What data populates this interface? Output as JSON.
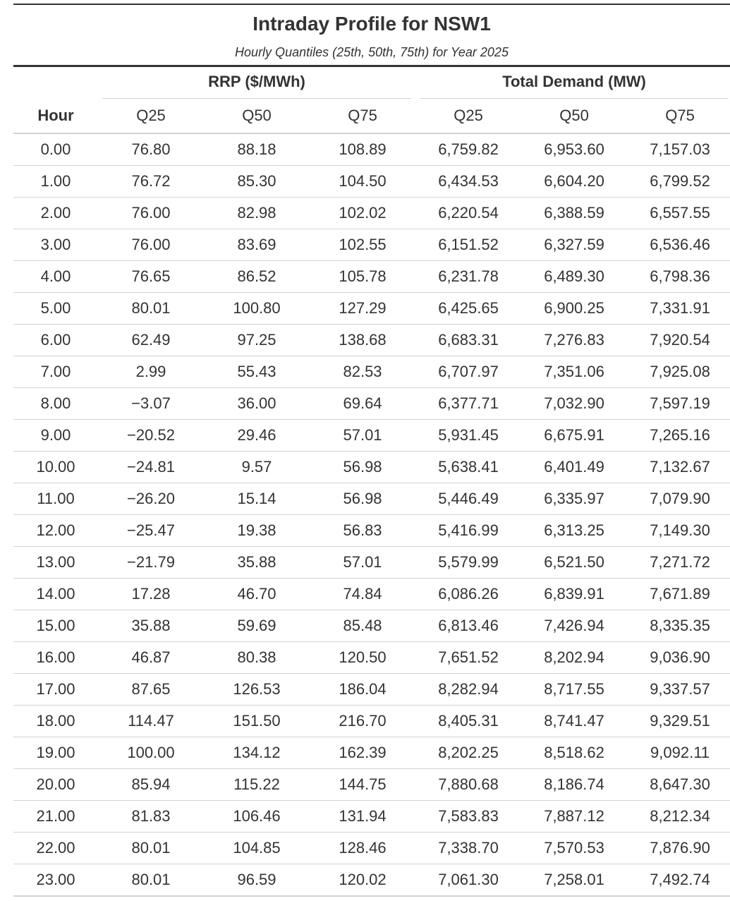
{
  "chart_data": {
    "type": "table",
    "title": "Intraday Profile for NSW1",
    "subtitle": "Hourly Quantiles (25th, 50th, 75th) for Year 2025",
    "spanners": [
      "RRP ($/MWh)",
      "Total Demand (MW)"
    ],
    "stub_header": "Hour",
    "columns": [
      "Q25",
      "Q50",
      "Q75",
      "Q25",
      "Q50",
      "Q75"
    ],
    "rows": [
      {
        "hour": "0.00",
        "cells": [
          "76.80",
          "88.18",
          "108.89",
          "6,759.82",
          "6,953.60",
          "7,157.03"
        ]
      },
      {
        "hour": "1.00",
        "cells": [
          "76.72",
          "85.30",
          "104.50",
          "6,434.53",
          "6,604.20",
          "6,799.52"
        ]
      },
      {
        "hour": "2.00",
        "cells": [
          "76.00",
          "82.98",
          "102.02",
          "6,220.54",
          "6,388.59",
          "6,557.55"
        ]
      },
      {
        "hour": "3.00",
        "cells": [
          "76.00",
          "83.69",
          "102.55",
          "6,151.52",
          "6,327.59",
          "6,536.46"
        ]
      },
      {
        "hour": "4.00",
        "cells": [
          "76.65",
          "86.52",
          "105.78",
          "6,231.78",
          "6,489.30",
          "6,798.36"
        ]
      },
      {
        "hour": "5.00",
        "cells": [
          "80.01",
          "100.80",
          "127.29",
          "6,425.65",
          "6,900.25",
          "7,331.91"
        ]
      },
      {
        "hour": "6.00",
        "cells": [
          "62.49",
          "97.25",
          "138.68",
          "6,683.31",
          "7,276.83",
          "7,920.54"
        ]
      },
      {
        "hour": "7.00",
        "cells": [
          "2.99",
          "55.43",
          "82.53",
          "6,707.97",
          "7,351.06",
          "7,925.08"
        ]
      },
      {
        "hour": "8.00",
        "cells": [
          "−3.07",
          "36.00",
          "69.64",
          "6,377.71",
          "7,032.90",
          "7,597.19"
        ]
      },
      {
        "hour": "9.00",
        "cells": [
          "−20.52",
          "29.46",
          "57.01",
          "5,931.45",
          "6,675.91",
          "7,265.16"
        ]
      },
      {
        "hour": "10.00",
        "cells": [
          "−24.81",
          "9.57",
          "56.98",
          "5,638.41",
          "6,401.49",
          "7,132.67"
        ]
      },
      {
        "hour": "11.00",
        "cells": [
          "−26.20",
          "15.14",
          "56.98",
          "5,446.49",
          "6,335.97",
          "7,079.90"
        ]
      },
      {
        "hour": "12.00",
        "cells": [
          "−25.47",
          "19.38",
          "56.83",
          "5,416.99",
          "6,313.25",
          "7,149.30"
        ]
      },
      {
        "hour": "13.00",
        "cells": [
          "−21.79",
          "35.88",
          "57.01",
          "5,579.99",
          "6,521.50",
          "7,271.72"
        ]
      },
      {
        "hour": "14.00",
        "cells": [
          "17.28",
          "46.70",
          "74.84",
          "6,086.26",
          "6,839.91",
          "7,671.89"
        ]
      },
      {
        "hour": "15.00",
        "cells": [
          "35.88",
          "59.69",
          "85.48",
          "6,813.46",
          "7,426.94",
          "8,335.35"
        ]
      },
      {
        "hour": "16.00",
        "cells": [
          "46.87",
          "80.38",
          "120.50",
          "7,651.52",
          "8,202.94",
          "9,036.90"
        ]
      },
      {
        "hour": "17.00",
        "cells": [
          "87.65",
          "126.53",
          "186.04",
          "8,282.94",
          "8,717.55",
          "9,337.57"
        ]
      },
      {
        "hour": "18.00",
        "cells": [
          "114.47",
          "151.50",
          "216.70",
          "8,405.31",
          "8,741.47",
          "9,329.51"
        ]
      },
      {
        "hour": "19.00",
        "cells": [
          "100.00",
          "134.12",
          "162.39",
          "8,202.25",
          "8,518.62",
          "9,092.11"
        ]
      },
      {
        "hour": "20.00",
        "cells": [
          "85.94",
          "115.22",
          "144.75",
          "7,880.68",
          "8,186.74",
          "8,647.30"
        ]
      },
      {
        "hour": "21.00",
        "cells": [
          "81.83",
          "106.46",
          "131.94",
          "7,583.83",
          "7,887.12",
          "8,212.34"
        ]
      },
      {
        "hour": "22.00",
        "cells": [
          "80.01",
          "104.85",
          "128.46",
          "7,338.70",
          "7,570.53",
          "7,876.90"
        ]
      },
      {
        "hour": "23.00",
        "cells": [
          "80.01",
          "96.59",
          "120.02",
          "7,061.30",
          "7,258.01",
          "7,492.74"
        ]
      }
    ]
  }
}
